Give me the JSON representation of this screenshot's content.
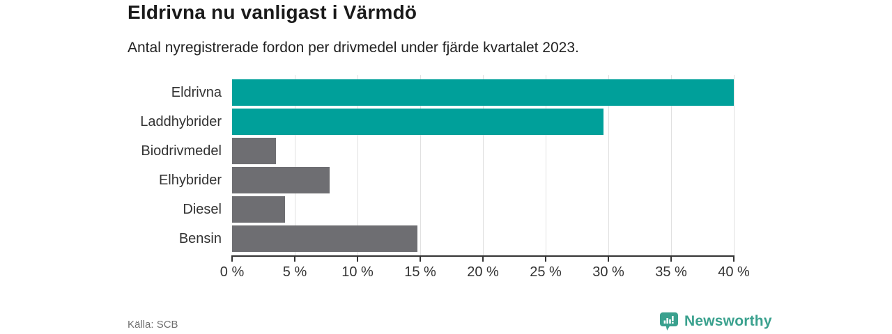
{
  "header": {
    "title": "Eldrivna nu vanligast i Värmdö",
    "subtitle": "Antal nyregistrerade fordon per drivmedel under fjärde kvartalet 2023."
  },
  "chart_data": {
    "type": "bar",
    "orientation": "horizontal",
    "title": "Eldrivna nu vanligast i Värmdö",
    "categories": [
      "Eldrivna",
      "Laddhybrider",
      "Biodrivmedel",
      "Elhybrider",
      "Diesel",
      "Bensin"
    ],
    "values": [
      40.1,
      29.6,
      3.5,
      7.8,
      4.2,
      14.8
    ],
    "unit": "%",
    "bar_colors": [
      "#00a09a",
      "#00a09a",
      "#6e6e72",
      "#6e6e72",
      "#6e6e72",
      "#6e6e72"
    ],
    "highlight_color": "#00a09a",
    "default_color": "#6e6e72",
    "xlabel": "",
    "ylabel": "",
    "xlim": [
      0,
      40
    ],
    "x_ticks": [
      0,
      5,
      10,
      15,
      20,
      25,
      30,
      35,
      40
    ],
    "x_tick_labels": [
      "0 %",
      "5 %",
      "10 %",
      "15 %",
      "20 %",
      "25 %",
      "30 %",
      "35 %",
      "40 %"
    ],
    "grid": "vertical",
    "gridline_color": "#e0e0e0",
    "axis_color": "#333333",
    "legend": "none"
  },
  "footer": {
    "source": "Källa: SCB",
    "brand_name": "Newsworthy",
    "brand_color": "#3aa18e",
    "logo_icon": "bar-chart-badge-icon"
  }
}
